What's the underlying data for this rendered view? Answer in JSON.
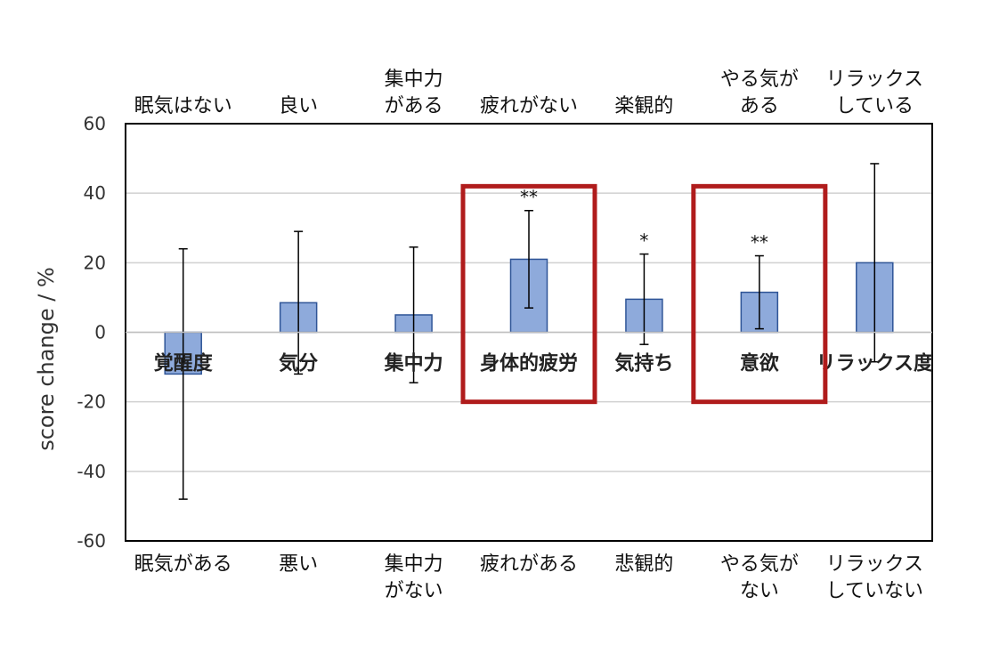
{
  "chart_data": {
    "type": "bar",
    "ylabel": "score change / %",
    "ylim": [
      -60,
      60
    ],
    "yticks": [
      -60,
      -40,
      -20,
      0,
      20,
      40,
      60
    ],
    "grid": true,
    "categories": [
      "覚醒度",
      "気分",
      "集中力",
      "身体的疲労",
      "気持ち",
      "意欲",
      "リラックス度"
    ],
    "values": [
      -12,
      8.5,
      5,
      21,
      9.5,
      11.5,
      20
    ],
    "error": [
      36,
      20.5,
      19.5,
      14,
      13,
      10.5,
      28.5
    ],
    "significance": [
      "",
      "",
      "",
      "**",
      "*",
      "**",
      ""
    ],
    "top_labels": [
      [
        "眠気はない"
      ],
      [
        "良い"
      ],
      [
        "集中力",
        "がある"
      ],
      [
        "疲れがない"
      ],
      [
        "楽観的"
      ],
      [
        "やる気が",
        "ある"
      ],
      [
        "リラックス",
        "している"
      ]
    ],
    "bottom_labels": [
      [
        "眠気がある"
      ],
      [
        "悪い"
      ],
      [
        "集中力",
        "がない"
      ],
      [
        "疲れがある"
      ],
      [
        "悲観的"
      ],
      [
        "やる気が",
        "ない"
      ],
      [
        "リラックス",
        "していない"
      ]
    ],
    "highlighted": [
      "身体的疲労",
      "意欲"
    ],
    "colors": {
      "bar_fill": "#8eaadb",
      "bar_stroke": "#2f5597",
      "highlight": "#b01c1c",
      "grid": "#d0d0d0",
      "axis": "#000000"
    }
  }
}
